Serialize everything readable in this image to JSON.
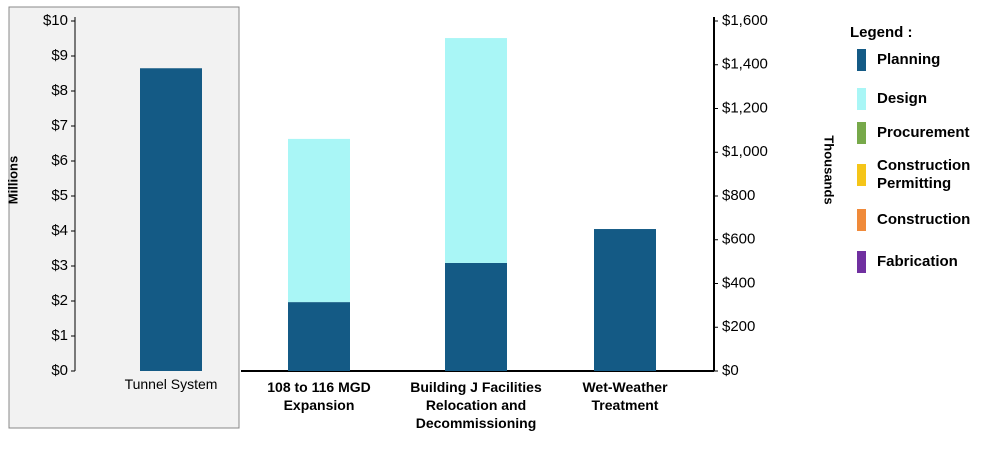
{
  "chart_data": [
    {
      "type": "bar",
      "y_label": "Millions",
      "categories": [
        "Tunnel System"
      ],
      "series": [
        {
          "name": "Planning",
          "color": "#145a85",
          "values": [
            8.65
          ]
        }
      ],
      "ylim": [
        0,
        10
      ],
      "yticks": [
        {
          "value": 0,
          "label": "$0"
        },
        {
          "value": 1,
          "label": "$1"
        },
        {
          "value": 2,
          "label": "$2"
        },
        {
          "value": 3,
          "label": "$3"
        },
        {
          "value": 4,
          "label": "$4"
        },
        {
          "value": 5,
          "label": "$5"
        },
        {
          "value": 6,
          "label": "$6"
        },
        {
          "value": 7,
          "label": "$7"
        },
        {
          "value": 8,
          "label": "$8"
        },
        {
          "value": 9,
          "label": "$9"
        },
        {
          "value": 10,
          "label": "$10"
        }
      ]
    },
    {
      "type": "stacked_bar",
      "y2_label": "Thousands",
      "categories": [
        "108 to 116 MGD Expansion",
        "Building J Facilities Relocation and Decommissioning",
        "Wet-Weather Treatment"
      ],
      "series": [
        {
          "name": "Planning",
          "color": "#145a85",
          "axis": "y2",
          "values": [
            315,
            494,
            649
          ]
        },
        {
          "name": "Design",
          "color": "#a9f6f6",
          "axis": "y2",
          "values": [
            746,
            1028,
            0
          ]
        }
      ],
      "y2lim": [
        0,
        1600
      ],
      "y2ticks": [
        {
          "value": 0,
          "label": "$0"
        },
        {
          "value": 200,
          "label": "$200"
        },
        {
          "value": 400,
          "label": "$400"
        },
        {
          "value": 600,
          "label": "$600"
        },
        {
          "value": 800,
          "label": "$800"
        },
        {
          "value": 1000,
          "label": "$1,000"
        },
        {
          "value": 1200,
          "label": "$1,200"
        },
        {
          "value": 1400,
          "label": "$1,400"
        },
        {
          "value": 1600,
          "label": "$1,600"
        }
      ],
      "legend": {
        "title": "Legend :",
        "items": [
          {
            "name": "Planning",
            "color": "#145a85"
          },
          {
            "name": "Design",
            "color": "#a9f6f6"
          },
          {
            "name": "Procurement",
            "color": "#77a94a"
          },
          {
            "name": "Construction Permitting",
            "color": "#f5c518"
          },
          {
            "name": "Construction",
            "color": "#f08a3a"
          },
          {
            "name": "Fabrication",
            "color": "#7030a0"
          }
        ]
      }
    }
  ]
}
